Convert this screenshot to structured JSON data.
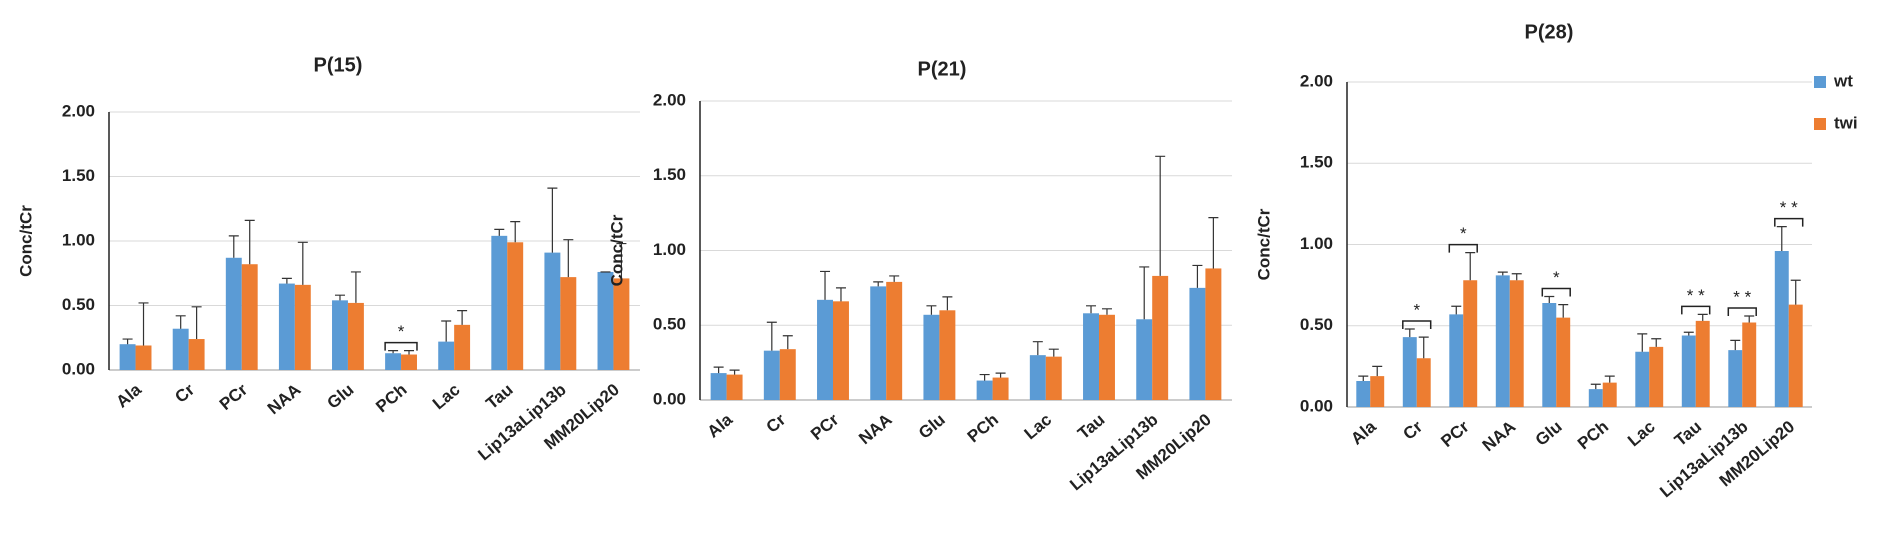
{
  "chart_data": [
    {
      "type": "bar",
      "title": "P(15)",
      "y_label": "Conc/tCr",
      "categories": [
        "Ala",
        "Cr",
        "PCr",
        "NAA",
        "Glu",
        "PCh",
        "Lac",
        "Tau",
        "Lip13aLip13b",
        "MM20Lip20"
      ],
      "series": [
        {
          "color": "#5b9bd5",
          "values": [
            0.2,
            0.32,
            0.87,
            0.67,
            0.54,
            0.13,
            0.22,
            1.04,
            0.91,
            0.76
          ],
          "errors": [
            0.04,
            0.1,
            0.17,
            0.04,
            0.04,
            0.02,
            0.16,
            0.05,
            0.5,
            0
          ]
        },
        {
          "color": "#ed7d31",
          "values": [
            0.19,
            0.24,
            0.82,
            0.66,
            0.52,
            0.12,
            0.35,
            0.99,
            0.72,
            0.71
          ],
          "errors": [
            0.33,
            0.25,
            0.34,
            0.33,
            0.24,
            0.03,
            0.11,
            0.16,
            0.29,
            0.27
          ]
        }
      ],
      "ylim": [
        0,
        2
      ],
      "yticks": [
        {
          "value": 0,
          "label": "0.00"
        },
        {
          "value": 0.5,
          "label": "0.50"
        },
        {
          "value": 1,
          "label": "1.00"
        },
        {
          "value": 1.5,
          "label": "1.50"
        },
        {
          "value": 2,
          "label": "2.00"
        }
      ],
      "grid": true,
      "annotations": [
        {
          "category": "PCh",
          "text": "*"
        }
      ]
    },
    {
      "type": "bar",
      "title": "P(21)",
      "y_label": "Conc/tCr",
      "categories": [
        "Ala",
        "Cr",
        "PCr",
        "NAA",
        "Glu",
        "PCh",
        "Lac",
        "Tau",
        "Lip13aLip13b",
        "MM20Lip20"
      ],
      "series": [
        {
          "color": "#5b9bd5",
          "values": [
            0.18,
            0.33,
            0.67,
            0.76,
            0.57,
            0.13,
            0.3,
            0.58,
            0.54,
            0.75
          ],
          "errors": [
            0.04,
            0.19,
            0.19,
            0.03,
            0.06,
            0.04,
            0.09,
            0.05,
            0.35,
            0.15
          ]
        },
        {
          "color": "#ed7d31",
          "values": [
            0.17,
            0.34,
            0.66,
            0.79,
            0.6,
            0.15,
            0.29,
            0.57,
            0.83,
            0.88
          ],
          "errors": [
            0.03,
            0.09,
            0.09,
            0.04,
            0.09,
            0.03,
            0.05,
            0.04,
            0.8,
            0.34
          ]
        }
      ],
      "ylim": [
        0,
        2
      ],
      "yticks": [
        {
          "value": 0,
          "label": "0.00"
        },
        {
          "value": 0.5,
          "label": "0.50"
        },
        {
          "value": 1,
          "label": "1.00"
        },
        {
          "value": 1.5,
          "label": "1.50"
        },
        {
          "value": 2,
          "label": "2.00"
        }
      ],
      "grid": true,
      "annotations": []
    },
    {
      "type": "bar",
      "title": "P(28)",
      "y_label": "Conc/tCr",
      "categories": [
        "Ala",
        "Cr",
        "PCr",
        "NAA",
        "Glu",
        "PCh",
        "Lac",
        "Tau",
        "Lip13aLip13b",
        "MM20Lip20"
      ],
      "series": [
        {
          "name": "wt",
          "color": "#5b9bd5",
          "values": [
            0.16,
            0.43,
            0.57,
            0.81,
            0.64,
            0.11,
            0.34,
            0.44,
            0.35,
            0.96
          ],
          "errors": [
            0.03,
            0.05,
            0.05,
            0.02,
            0.04,
            0.03,
            0.11,
            0.02,
            0.06,
            0.15
          ]
        },
        {
          "name": "twi",
          "color": "#ed7d31",
          "values": [
            0.19,
            0.3,
            0.78,
            0.78,
            0.55,
            0.15,
            0.37,
            0.53,
            0.52,
            0.63
          ],
          "errors": [
            0.06,
            0.13,
            0.17,
            0.04,
            0.08,
            0.04,
            0.05,
            0.04,
            0.04,
            0.15
          ]
        }
      ],
      "ylim": [
        0,
        2
      ],
      "yticks": [
        {
          "value": 0,
          "label": "0.00"
        },
        {
          "value": 0.5,
          "label": "0.50"
        },
        {
          "value": 1,
          "label": "1.00"
        },
        {
          "value": 1.5,
          "label": "1.50"
        },
        {
          "value": 2,
          "label": "2.00"
        }
      ],
      "grid": true,
      "legend": "right",
      "annotations": [
        {
          "category": "Cr",
          "text": "*"
        },
        {
          "category": "PCr",
          "text": "*"
        },
        {
          "category": "Glu",
          "text": "*"
        },
        {
          "category": "Tau",
          "text": "* *"
        },
        {
          "category": "Lip13aLip13b",
          "text": "* *"
        },
        {
          "category": "MM20Lip20",
          "text": "* *"
        }
      ]
    }
  ]
}
